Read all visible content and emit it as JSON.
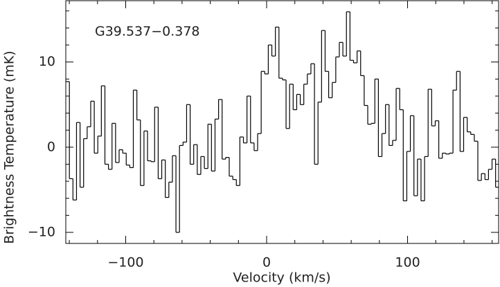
{
  "chart_data": {
    "type": "step",
    "annotation": "G39.537−0.378",
    "xlabel": "Velocity (km/s)",
    "ylabel": "Brightness Temperature (mK)",
    "color": "#000000",
    "grid": false,
    "xlim": [
      -142.5,
      164.6
    ],
    "ylim": [
      -11.3,
      17.2
    ],
    "xticks": [
      {
        "value": -100,
        "label": "−100"
      },
      0,
      100
    ],
    "yticks": [
      {
        "value": -10,
        "label": "−10"
      },
      0,
      10
    ],
    "xminorticks": [
      -140,
      -120,
      -80,
      -60,
      -40,
      -20,
      20,
      40,
      60,
      80,
      120,
      140,
      160
    ],
    "yminorticks": [
      -8,
      -6,
      -4,
      -2,
      2,
      4,
      6,
      8,
      12,
      14,
      16
    ],
    "x": [
      -141.2,
      -138.68,
      -136.16,
      -133.64,
      -131.12,
      -128.6,
      -126.08,
      -123.56,
      -121.04,
      -118.52,
      -116,
      -113.48,
      -110.96,
      -108.44,
      -105.92,
      -103.4,
      -100.88,
      -98.36,
      -95.84,
      -93.32,
      -90.8,
      -88.28,
      -85.76,
      -83.24,
      -80.72,
      -78.2,
      -75.68,
      -73.16,
      -70.64,
      -68.12,
      -65.6,
      -63.08,
      -60.56,
      -58.04,
      -55.52,
      -53,
      -50.48,
      -47.96,
      -45.44,
      -42.92,
      -40.4,
      -37.88,
      -35.36,
      -32.84,
      -30.32,
      -27.8,
      -25.28,
      -22.76,
      -20.24,
      -17.72,
      -15.2,
      -12.68,
      -10.16,
      -7.64,
      -5.12,
      -2.6,
      -0.08,
      2.44,
      4.96,
      7.48,
      10,
      12.52,
      15.04,
      17.56,
      20.08,
      22.6,
      25.12,
      27.64,
      30.16,
      32.68,
      35.2,
      37.72,
      40.24,
      42.76,
      45.28,
      47.8,
      50.32,
      52.84,
      55.36,
      57.88,
      60.4,
      62.92,
      65.44,
      67.96,
      70.48,
      73,
      75.52,
      78.04,
      80.56,
      83.08,
      85.6,
      88.12,
      90.64,
      93.16,
      95.68,
      98.2,
      100.72,
      103.24,
      105.76,
      108.28,
      110.8,
      113.32,
      115.84,
      118.36,
      120.88,
      123.4,
      125.92,
      128.44,
      130.96,
      133.48,
      136,
      138.52,
      141.04,
      143.56,
      146.08,
      148.6,
      151.12,
      153.64,
      156.16,
      158.68,
      161.2,
      163.72
    ],
    "values": [
      7.7,
      -3.7,
      -6.2,
      2.9,
      -4.7,
      1.0,
      2.4,
      5.4,
      -0.7,
      1.3,
      7.2,
      -2.0,
      -2.6,
      2.8,
      -1.8,
      -0.3,
      -0.7,
      -2.1,
      -2.4,
      6.7,
      3.2,
      -4.5,
      1.9,
      -1.6,
      -1.7,
      4.7,
      -3.7,
      -1.5,
      -5.9,
      -4.1,
      -1.0,
      -10.0,
      0.2,
      0.6,
      5.0,
      -2.0,
      0.3,
      -3.2,
      -1.1,
      -2.5,
      2.7,
      -2.8,
      3.3,
      5.6,
      -1.4,
      -1.2,
      -3.4,
      -3.8,
      -4.5,
      1.2,
      0.5,
      6.0,
      0.5,
      -0.4,
      1.6,
      8.9,
      8.6,
      12.0,
      10.7,
      14.1,
      8.1,
      7.9,
      2.2,
      7.4,
      4.4,
      6.2,
      5.0,
      7.4,
      8.6,
      9.8,
      -2.0,
      5.3,
      13.7,
      8.9,
      5.8,
      7.6,
      10.6,
      12.3,
      10.7,
      15.9,
      10.2,
      9.9,
      11.3,
      8.4,
      4.9,
      2.7,
      2.8,
      8.0,
      -1.1,
      1.6,
      5.0,
      0.2,
      0.8,
      6.9,
      4.4,
      -6.3,
      -0.5,
      3.7,
      -5.7,
      -1.4,
      -6.3,
      -1.1,
      6.8,
      2.5,
      3.1,
      -1.3,
      -0.7,
      -0.8,
      -0.7,
      6.7,
      8.9,
      -0.5,
      3.5,
      1.8,
      1.5,
      0.7,
      -3.9,
      -3.1,
      -3.8,
      -2.6,
      -1.4,
      -4.7
    ]
  }
}
